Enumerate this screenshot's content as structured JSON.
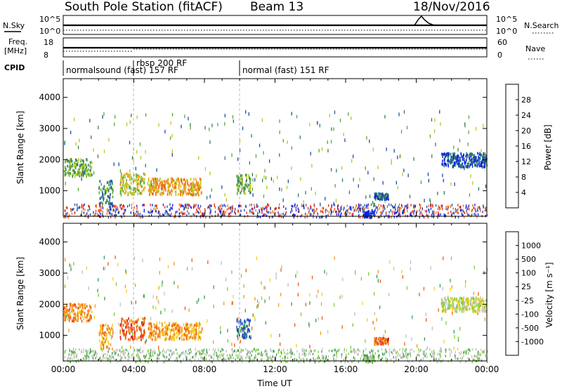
{
  "header": {
    "station": "South Pole Station (fitACF)",
    "beam": "Beam 13",
    "date": "18/Nov/2016"
  },
  "top_panels": {
    "nsky_label": "N.Sky",
    "nsearch_label": "N.Search",
    "freq_label_1": "Freq.",
    "freq_label_2": "[MHz]",
    "nave_label": "Nave",
    "cpid_label": "CPID",
    "noise_ticks_left": [
      "10^5",
      "10^0"
    ],
    "noise_ticks_right": [
      "10^5",
      "10^0"
    ],
    "freq_ticks": [
      "18",
      "8"
    ],
    "nave_ticks": [
      "60",
      "0"
    ]
  },
  "cpid_segments": [
    {
      "start_h": 0.0,
      "end_h": 4.0,
      "label": "normalsound (fast) 157 RF"
    },
    {
      "start_h": 4.0,
      "end_h": 10.0,
      "label": "rbsp 200 RF"
    },
    {
      "start_h": 10.0,
      "end_h": 24.0,
      "label": "normal (fast) 151 RF"
    }
  ],
  "chart_data": [
    {
      "type": "heatmap",
      "name": "power",
      "xlabel": "",
      "ylabel": "Slant Range [km]",
      "xlim": [
        0,
        24
      ],
      "ylim": [
        180,
        4600
      ],
      "yticks": [
        "1000",
        "2000",
        "3000",
        "4000"
      ],
      "colorbar": {
        "label": "Power [dB]",
        "ticks": [
          "4",
          "8",
          "12",
          "16",
          "20",
          "24",
          "28"
        ],
        "colors": [
          "#0a1eef",
          "#1a4fa8",
          "#2f7f5c",
          "#5aa83a",
          "#b7c81e",
          "#f2a21a",
          "#f26b14",
          "#e0281a"
        ]
      },
      "regions": [
        {
          "t0": 0.0,
          "t1": 1.6,
          "r0": 1500,
          "r1": 2050,
          "level": 3
        },
        {
          "t0": 2.0,
          "t1": 2.8,
          "r0": 600,
          "r1": 1400,
          "level": 2
        },
        {
          "t0": 3.2,
          "t1": 4.6,
          "r0": 900,
          "r1": 1600,
          "level": 4
        },
        {
          "t0": 4.8,
          "t1": 7.8,
          "r0": 900,
          "r1": 1450,
          "level": 5
        },
        {
          "t0": 9.8,
          "t1": 10.6,
          "r0": 950,
          "r1": 1550,
          "level": 3
        },
        {
          "t0": 17.6,
          "t1": 18.4,
          "r0": 750,
          "r1": 950,
          "level": 1
        },
        {
          "t0": 21.4,
          "t1": 24.0,
          "r0": 1800,
          "r1": 2250,
          "level": 1
        },
        {
          "t0": 17.0,
          "t1": 17.6,
          "r0": 180,
          "r1": 400,
          "level": 0
        }
      ]
    },
    {
      "type": "heatmap",
      "name": "velocity",
      "xlabel": "Time UT",
      "ylabel": "Slant Range [km]",
      "xlim": [
        0,
        24
      ],
      "ylim": [
        180,
        4600
      ],
      "yticks": [
        "1000",
        "2000",
        "3000",
        "4000"
      ],
      "xticks": [
        "00:00",
        "04:00",
        "08:00",
        "12:00",
        "16:00",
        "20:00",
        "00:00"
      ],
      "colorbar": {
        "label": "Velocity [m s⁻¹]",
        "ticks": [
          "1000",
          "500",
          "100",
          "25",
          "-25",
          "-100",
          "-500",
          "-1000"
        ],
        "colors": [
          "#1a3fd0",
          "#2a6aa0",
          "#3a9a50",
          "#7ad030",
          "#bfbfbf",
          "#f2d020",
          "#f29a1a",
          "#f25a14",
          "#e0201a"
        ]
      },
      "regions": [
        {
          "t0": 0.0,
          "t1": 1.6,
          "r0": 1500,
          "r1": 2050,
          "level": 6
        },
        {
          "t0": 2.0,
          "t1": 2.8,
          "r0": 600,
          "r1": 1400,
          "level": 6
        },
        {
          "t0": 3.2,
          "t1": 4.6,
          "r0": 900,
          "r1": 1600,
          "level": 7
        },
        {
          "t0": 4.8,
          "t1": 7.8,
          "r0": 900,
          "r1": 1450,
          "level": 6
        },
        {
          "t0": 9.8,
          "t1": 10.6,
          "r0": 950,
          "r1": 1550,
          "level": 1
        },
        {
          "t0": 17.6,
          "t1": 18.4,
          "r0": 750,
          "r1": 950,
          "level": 7
        },
        {
          "t0": 21.4,
          "t1": 24.0,
          "r0": 1800,
          "r1": 2250,
          "level": 4
        },
        {
          "t0": 17.0,
          "t1": 17.6,
          "r0": 180,
          "r1": 400,
          "level": 3
        }
      ]
    }
  ]
}
